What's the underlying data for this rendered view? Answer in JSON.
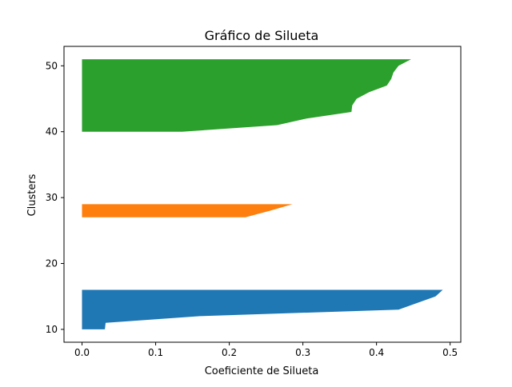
{
  "chart_data": {
    "type": "area",
    "title": "Gráfico de Silueta",
    "xlabel": "Coeficiente de Silueta",
    "ylabel": "Clusters",
    "xlim": [
      -0.0245,
      0.5145
    ],
    "ylim": [
      8.05,
      52.95
    ],
    "xticks": [
      0.0,
      0.1,
      0.2,
      0.3,
      0.4,
      0.5
    ],
    "xtick_labels": [
      "0.0",
      "0.1",
      "0.2",
      "0.3",
      "0.4",
      "0.5"
    ],
    "yticks": [
      10,
      20,
      30,
      40,
      50
    ],
    "ytick_labels": [
      "10",
      "20",
      "30",
      "40",
      "50"
    ],
    "grid": false,
    "series": [
      {
        "color": "#1f77b4",
        "points": [
          [
            0.0,
            10.0
          ],
          [
            0.031,
            10.0
          ],
          [
            0.032,
            11.0
          ],
          [
            0.16,
            12.0
          ],
          [
            0.43,
            13.0
          ],
          [
            0.455,
            14.0
          ],
          [
            0.48,
            15.0
          ],
          [
            0.49,
            16.0
          ],
          [
            0.0,
            16.0
          ]
        ]
      },
      {
        "color": "#ff7f0e",
        "points": [
          [
            0.0,
            27.0
          ],
          [
            0.222,
            27.0
          ],
          [
            0.255,
            28.0
          ],
          [
            0.286,
            29.0
          ],
          [
            0.0,
            29.0
          ]
        ]
      },
      {
        "color": "#2ca02c",
        "points": [
          [
            0.0,
            40.0
          ],
          [
            0.136,
            40.0
          ],
          [
            0.265,
            41.0
          ],
          [
            0.305,
            42.0
          ],
          [
            0.366,
            43.0
          ],
          [
            0.367,
            44.0
          ],
          [
            0.373,
            45.0
          ],
          [
            0.39,
            46.0
          ],
          [
            0.414,
            47.0
          ],
          [
            0.42,
            48.0
          ],
          [
            0.423,
            49.0
          ],
          [
            0.43,
            50.0
          ],
          [
            0.447,
            51.0
          ],
          [
            0.0,
            51.0
          ]
        ]
      }
    ]
  }
}
